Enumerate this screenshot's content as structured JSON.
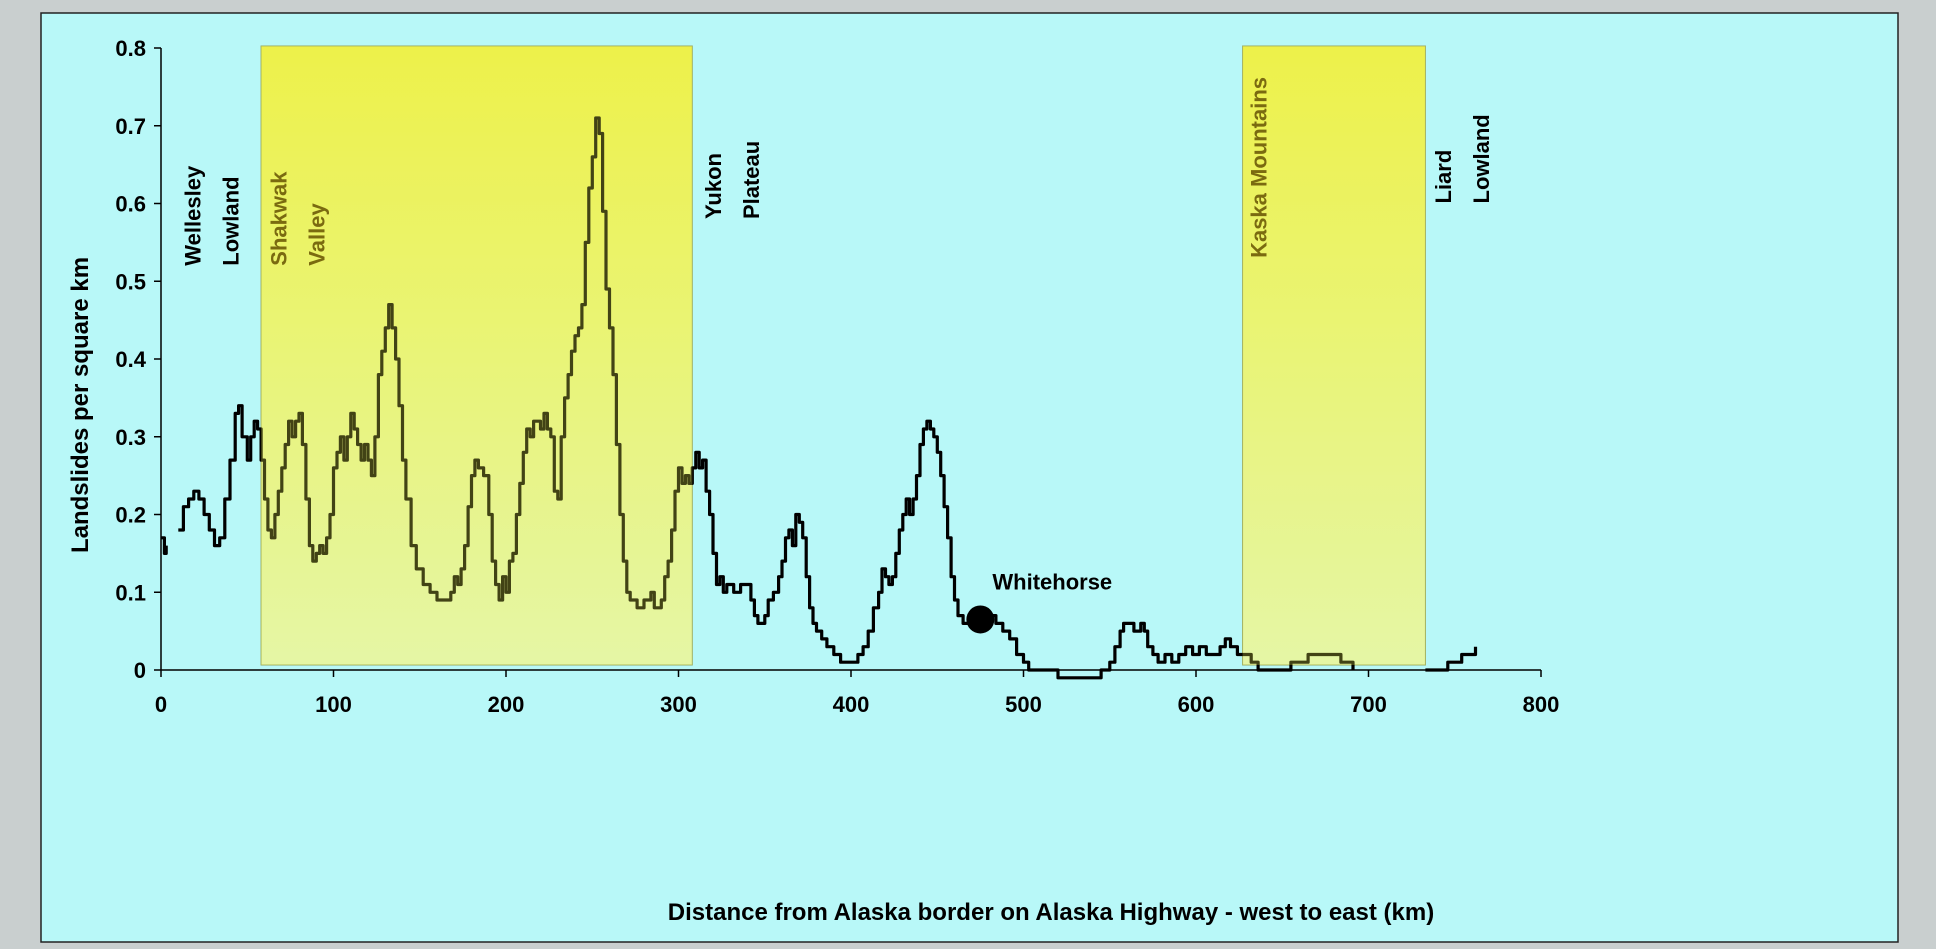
{
  "chart_data": {
    "type": "line",
    "ylabel": "Landslides per square km",
    "xlabel": "Distance from Alaska border on Alaska Highway - west to east (km)",
    "xlim": [
      0,
      800
    ],
    "ylim": [
      0,
      0.8
    ],
    "xticks": [
      0,
      100,
      200,
      300,
      400,
      500,
      600,
      700,
      800
    ],
    "yticks": [
      0,
      0.1,
      0.2,
      0.3,
      0.4,
      0.5,
      0.6,
      0.7,
      0.8
    ],
    "xtick_labels": [
      "0",
      "100",
      "200",
      "300",
      "400",
      "500",
      "600",
      "700",
      "800"
    ],
    "ytick_labels": [
      "0",
      "0.1",
      "0.2",
      "0.3",
      "0.4",
      "0.5",
      "0.6",
      "0.7",
      "0.8"
    ],
    "grid": false,
    "regions": [
      {
        "label": "Shakwak\nValley",
        "x": [
          58,
          308
        ],
        "color": "#eef24a"
      },
      {
        "label": "Kaska Mountains",
        "x": [
          627,
          733
        ],
        "color": "#eef24a"
      }
    ],
    "region_labels": [
      {
        "text": "Wellesley\nLowland",
        "x": 10,
        "y": 0.52,
        "color": "#000000"
      },
      {
        "text": "Shakwak\nValley",
        "x": 60,
        "y": 0.52,
        "color": "#7a6a10"
      },
      {
        "text": "Yukon\nPlateau",
        "x": 312,
        "y": 0.58,
        "color": "#000000"
      },
      {
        "text": "Kaska Mountains",
        "x": 628,
        "y": 0.53,
        "color": "#7a6a10"
      },
      {
        "text": "Liard\nLowland",
        "x": 735,
        "y": 0.6,
        "color": "#000000"
      }
    ],
    "annotation": {
      "text": "Whitehorse",
      "x": 475,
      "y": 0.065
    },
    "series": [
      {
        "color": "#000000",
        "segments": [
          [
            [
              0,
              0.17
            ],
            [
              2,
              0.15
            ],
            [
              3,
              0.16
            ]
          ],
          [
            [
              10,
              0.18
            ],
            [
              13,
              0.21
            ],
            [
              16,
              0.22
            ],
            [
              19,
              0.23
            ],
            [
              22,
              0.22
            ],
            [
              25,
              0.2
            ],
            [
              28,
              0.18
            ],
            [
              31,
              0.16
            ],
            [
              34,
              0.17
            ],
            [
              37,
              0.22
            ],
            [
              40,
              0.27
            ],
            [
              43,
              0.33
            ],
            [
              45,
              0.34
            ],
            [
              47,
              0.3
            ],
            [
              50,
              0.27
            ],
            [
              52,
              0.3
            ],
            [
              54,
              0.32
            ],
            [
              56,
              0.31
            ],
            [
              58,
              0.27
            ],
            [
              60,
              0.22
            ],
            [
              62,
              0.18
            ],
            [
              64,
              0.17
            ],
            [
              66,
              0.2
            ],
            [
              68,
              0.23
            ],
            [
              70,
              0.26
            ],
            [
              72,
              0.29
            ],
            [
              74,
              0.32
            ],
            [
              76,
              0.3
            ],
            [
              78,
              0.32
            ],
            [
              80,
              0.33
            ],
            [
              82,
              0.29
            ],
            [
              84,
              0.22
            ],
            [
              86,
              0.16
            ],
            [
              88,
              0.14
            ],
            [
              90,
              0.15
            ],
            [
              92,
              0.16
            ],
            [
              94,
              0.15
            ],
            [
              96,
              0.17
            ],
            [
              98,
              0.2
            ],
            [
              100,
              0.26
            ],
            [
              102,
              0.28
            ],
            [
              104,
              0.3
            ],
            [
              106,
              0.27
            ],
            [
              108,
              0.3
            ],
            [
              110,
              0.33
            ],
            [
              112,
              0.31
            ],
            [
              114,
              0.29
            ],
            [
              116,
              0.27
            ],
            [
              118,
              0.29
            ],
            [
              120,
              0.27
            ],
            [
              122,
              0.25
            ],
            [
              124,
              0.3
            ],
            [
              126,
              0.38
            ],
            [
              128,
              0.41
            ],
            [
              130,
              0.44
            ],
            [
              132,
              0.47
            ],
            [
              134,
              0.44
            ],
            [
              136,
              0.4
            ],
            [
              138,
              0.34
            ],
            [
              140,
              0.27
            ],
            [
              142,
              0.22
            ],
            [
              145,
              0.16
            ],
            [
              148,
              0.13
            ],
            [
              152,
              0.11
            ],
            [
              156,
              0.1
            ],
            [
              160,
              0.09
            ],
            [
              164,
              0.09
            ],
            [
              168,
              0.1
            ],
            [
              170,
              0.12
            ],
            [
              172,
              0.11
            ],
            [
              174,
              0.13
            ],
            [
              176,
              0.16
            ],
            [
              178,
              0.21
            ],
            [
              180,
              0.25
            ],
            [
              182,
              0.27
            ],
            [
              184,
              0.26
            ],
            [
              187,
              0.25
            ],
            [
              190,
              0.2
            ],
            [
              192,
              0.14
            ],
            [
              194,
              0.11
            ],
            [
              196,
              0.09
            ],
            [
              198,
              0.12
            ],
            [
              200,
              0.1
            ],
            [
              202,
              0.14
            ],
            [
              204,
              0.15
            ],
            [
              206,
              0.2
            ],
            [
              208,
              0.24
            ],
            [
              210,
              0.28
            ],
            [
              212,
              0.31
            ],
            [
              214,
              0.3
            ],
            [
              216,
              0.32
            ],
            [
              218,
              0.32
            ],
            [
              220,
              0.31
            ],
            [
              222,
              0.33
            ],
            [
              224,
              0.31
            ],
            [
              226,
              0.3
            ],
            [
              228,
              0.23
            ],
            [
              230,
              0.22
            ],
            [
              232,
              0.3
            ],
            [
              234,
              0.35
            ],
            [
              236,
              0.38
            ],
            [
              238,
              0.41
            ],
            [
              240,
              0.43
            ],
            [
              242,
              0.44
            ],
            [
              244,
              0.47
            ],
            [
              246,
              0.55
            ],
            [
              248,
              0.62
            ],
            [
              250,
              0.66
            ],
            [
              252,
              0.71
            ],
            [
              254,
              0.69
            ],
            [
              256,
              0.59
            ],
            [
              258,
              0.49
            ],
            [
              260,
              0.44
            ],
            [
              262,
              0.38
            ],
            [
              264,
              0.29
            ],
            [
              266,
              0.2
            ],
            [
              268,
              0.14
            ],
            [
              270,
              0.1
            ],
            [
              272,
              0.09
            ],
            [
              276,
              0.08
            ],
            [
              280,
              0.09
            ],
            [
              284,
              0.1
            ],
            [
              286,
              0.08
            ],
            [
              290,
              0.09
            ],
            [
              292,
              0.12
            ],
            [
              294,
              0.14
            ],
            [
              296,
              0.18
            ],
            [
              298,
              0.23
            ],
            [
              300,
              0.26
            ],
            [
              302,
              0.24
            ],
            [
              304,
              0.25
            ],
            [
              306,
              0.24
            ],
            [
              308,
              0.26
            ],
            [
              310,
              0.28
            ],
            [
              312,
              0.26
            ],
            [
              314,
              0.27
            ],
            [
              316,
              0.23
            ],
            [
              318,
              0.2
            ],
            [
              320,
              0.15
            ],
            [
              322,
              0.11
            ],
            [
              324,
              0.12
            ],
            [
              326,
              0.1
            ],
            [
              328,
              0.11
            ],
            [
              332,
              0.1
            ],
            [
              336,
              0.11
            ],
            [
              340,
              0.11
            ],
            [
              342,
              0.09
            ],
            [
              344,
              0.07
            ],
            [
              346,
              0.06
            ],
            [
              348,
              0.06
            ],
            [
              350,
              0.07
            ],
            [
              352,
              0.09
            ],
            [
              355,
              0.1
            ],
            [
              358,
              0.12
            ],
            [
              360,
              0.14
            ],
            [
              362,
              0.17
            ],
            [
              364,
              0.18
            ],
            [
              366,
              0.16
            ],
            [
              368,
              0.2
            ],
            [
              370,
              0.19
            ],
            [
              372,
              0.17
            ],
            [
              374,
              0.12
            ],
            [
              376,
              0.08
            ],
            [
              378,
              0.06
            ],
            [
              380,
              0.05
            ],
            [
              383,
              0.04
            ],
            [
              386,
              0.03
            ],
            [
              390,
              0.02
            ],
            [
              394,
              0.01
            ],
            [
              398,
              0.01
            ],
            [
              402,
              0.01
            ],
            [
              404,
              0.02
            ],
            [
              407,
              0.03
            ],
            [
              410,
              0.05
            ],
            [
              413,
              0.08
            ],
            [
              416,
              0.1
            ],
            [
              418,
              0.13
            ],
            [
              420,
              0.12
            ],
            [
              422,
              0.11
            ],
            [
              424,
              0.12
            ],
            [
              426,
              0.15
            ],
            [
              428,
              0.18
            ],
            [
              430,
              0.2
            ],
            [
              432,
              0.22
            ],
            [
              434,
              0.2
            ],
            [
              436,
              0.22
            ],
            [
              438,
              0.25
            ],
            [
              440,
              0.29
            ],
            [
              442,
              0.31
            ],
            [
              444,
              0.32
            ],
            [
              446,
              0.31
            ],
            [
              448,
              0.3
            ],
            [
              450,
              0.28
            ],
            [
              452,
              0.25
            ],
            [
              454,
              0.21
            ],
            [
              456,
              0.17
            ],
            [
              458,
              0.12
            ],
            [
              460,
              0.09
            ],
            [
              462,
              0.07
            ],
            [
              465,
              0.06
            ],
            [
              470,
              0.06
            ],
            [
              475,
              0.06
            ],
            [
              480,
              0.07
            ],
            [
              484,
              0.06
            ],
            [
              488,
              0.05
            ],
            [
              492,
              0.04
            ],
            [
              496,
              0.02
            ],
            [
              500,
              0.01
            ],
            [
              503,
              0.0
            ],
            [
              510,
              0.0
            ],
            [
              515,
              0.0
            ],
            [
              520,
              -0.01
            ],
            [
              530,
              -0.01
            ],
            [
              540,
              -0.01
            ],
            [
              545,
              0.0
            ],
            [
              550,
              0.01
            ],
            [
              553,
              0.03
            ],
            [
              556,
              0.05
            ],
            [
              558,
              0.06
            ],
            [
              561,
              0.06
            ],
            [
              564,
              0.05
            ],
            [
              568,
              0.06
            ],
            [
              570,
              0.05
            ],
            [
              572,
              0.03
            ],
            [
              575,
              0.02
            ],
            [
              578,
              0.01
            ],
            [
              582,
              0.02
            ],
            [
              586,
              0.01
            ],
            [
              590,
              0.02
            ],
            [
              594,
              0.03
            ],
            [
              598,
              0.02
            ],
            [
              602,
              0.03
            ],
            [
              606,
              0.02
            ],
            [
              610,
              0.02
            ],
            [
              614,
              0.03
            ],
            [
              617,
              0.04
            ],
            [
              620,
              0.03
            ],
            [
              624,
              0.02
            ],
            [
              628,
              0.02
            ],
            [
              632,
              0.01
            ],
            [
              636,
              0.0
            ],
            [
              640,
              0.0
            ],
            [
              645,
              0.0
            ],
            [
              650,
              0.0
            ],
            [
              655,
              0.01
            ],
            [
              660,
              0.01
            ],
            [
              665,
              0.02
            ],
            [
              670,
              0.02
            ],
            [
              675,
              0.02
            ],
            [
              680,
              0.02
            ],
            [
              684,
              0.01
            ],
            [
              688,
              0.01
            ],
            [
              691,
              0.0
            ]
          ],
          [
            [
              733,
              0.0
            ],
            [
              740,
              0.0
            ],
            [
              746,
              0.01
            ],
            [
              750,
              0.01
            ],
            [
              754,
              0.02
            ],
            [
              758,
              0.02
            ],
            [
              762,
              0.03
            ]
          ]
        ]
      }
    ]
  }
}
